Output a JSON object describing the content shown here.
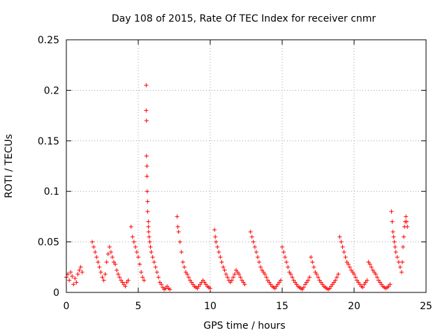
{
  "chart_data": {
    "type": "scatter",
    "title": "Day 108 of 2015, Rate Of TEC Index for receiver cnmr",
    "xlabel": "GPS time / hours",
    "ylabel": "ROTI / TECUs",
    "xlim": [
      0,
      25
    ],
    "ylim": [
      0,
      0.25
    ],
    "x_ticks": [
      0,
      5,
      10,
      15,
      20,
      25
    ],
    "x_tick_labels": [
      "0",
      "5",
      "10",
      "15",
      "20",
      "25"
    ],
    "y_ticks": [
      0,
      0.05,
      0.1,
      0.15,
      0.2,
      0.25
    ],
    "y_tick_labels": [
      "0",
      "0.05",
      "0.1",
      "0.15",
      "0.2",
      "0.25"
    ],
    "grid": true,
    "marker": "+",
    "series": [
      {
        "name": "ROTI",
        "color": "#ff0000",
        "x": [
          0.0,
          0.1,
          0.2,
          0.3,
          0.4,
          0.5,
          0.6,
          0.7,
          0.8,
          0.9,
          1.0,
          1.1,
          1.8,
          1.9,
          2.0,
          2.1,
          2.2,
          2.3,
          2.4,
          2.5,
          2.6,
          2.7,
          2.8,
          2.9,
          3.0,
          3.1,
          3.2,
          3.3,
          3.4,
          3.5,
          3.6,
          3.7,
          3.8,
          3.9,
          4.0,
          4.1,
          4.2,
          4.3,
          4.5,
          4.6,
          4.7,
          4.8,
          4.9,
          5.0,
          5.1,
          5.2,
          5.3,
          5.4,
          5.55,
          5.55,
          5.57,
          5.57,
          5.6,
          5.6,
          5.62,
          5.65,
          5.65,
          5.7,
          5.7,
          5.72,
          5.75,
          5.8,
          5.85,
          5.9,
          6.0,
          6.1,
          6.2,
          6.3,
          6.4,
          6.5,
          6.6,
          6.7,
          6.8,
          6.9,
          7.0,
          7.1,
          7.2,
          7.7,
          7.75,
          7.8,
          7.9,
          8.0,
          8.1,
          8.2,
          8.3,
          8.4,
          8.5,
          8.6,
          8.7,
          8.8,
          8.9,
          9.0,
          9.1,
          9.2,
          9.3,
          9.4,
          9.5,
          9.6,
          9.7,
          9.8,
          9.9,
          10.0,
          10.3,
          10.35,
          10.4,
          10.5,
          10.6,
          10.7,
          10.8,
          10.9,
          11.0,
          11.1,
          11.2,
          11.3,
          11.4,
          11.5,
          11.6,
          11.7,
          11.8,
          11.9,
          12.0,
          12.1,
          12.2,
          12.3,
          12.4,
          12.8,
          12.9,
          13.0,
          13.1,
          13.2,
          13.3,
          13.4,
          13.5,
          13.6,
          13.7,
          13.8,
          13.9,
          14.0,
          14.1,
          14.2,
          14.3,
          14.4,
          14.5,
          14.6,
          14.7,
          14.8,
          14.9,
          15.0,
          15.1,
          15.2,
          15.3,
          15.4,
          15.5,
          15.6,
          15.7,
          15.8,
          15.9,
          16.0,
          16.1,
          16.2,
          16.3,
          16.4,
          16.5,
          16.6,
          16.7,
          16.8,
          16.9,
          17.0,
          17.1,
          17.2,
          17.3,
          17.4,
          17.5,
          17.6,
          17.7,
          17.8,
          17.9,
          18.0,
          18.1,
          18.2,
          18.3,
          18.4,
          18.5,
          18.6,
          18.7,
          18.8,
          18.9,
          19.0,
          19.1,
          19.2,
          19.3,
          19.4,
          19.5,
          19.6,
          19.7,
          19.8,
          19.9,
          20.0,
          20.1,
          20.2,
          20.3,
          20.4,
          20.5,
          20.6,
          20.7,
          20.8,
          20.9,
          21.0,
          21.1,
          21.2,
          21.3,
          21.4,
          21.5,
          21.6,
          21.7,
          21.8,
          21.9,
          22.0,
          22.1,
          22.2,
          22.3,
          22.4,
          22.5,
          22.6,
          22.65,
          22.7,
          22.75,
          22.8,
          22.85,
          22.9,
          23.0,
          23.1,
          23.2,
          23.3,
          23.35,
          23.4,
          23.45,
          23.5,
          23.55,
          23.6,
          23.65,
          23.7
        ],
        "y": [
          0.015,
          0.018,
          0.012,
          0.02,
          0.016,
          0.008,
          0.014,
          0.01,
          0.018,
          0.022,
          0.025,
          0.02,
          0.05,
          0.045,
          0.04,
          0.035,
          0.03,
          0.025,
          0.02,
          0.015,
          0.012,
          0.018,
          0.03,
          0.038,
          0.045,
          0.04,
          0.035,
          0.03,
          0.028,
          0.022,
          0.018,
          0.015,
          0.012,
          0.01,
          0.008,
          0.006,
          0.01,
          0.012,
          0.065,
          0.055,
          0.05,
          0.045,
          0.04,
          0.035,
          0.028,
          0.02,
          0.015,
          0.012,
          0.205,
          0.18,
          0.17,
          0.135,
          0.125,
          0.115,
          0.1,
          0.09,
          0.08,
          0.07,
          0.065,
          0.06,
          0.055,
          0.05,
          0.045,
          0.04,
          0.035,
          0.03,
          0.025,
          0.02,
          0.015,
          0.01,
          0.008,
          0.005,
          0.003,
          0.004,
          0.006,
          0.004,
          0.003,
          0.075,
          0.065,
          0.06,
          0.05,
          0.04,
          0.03,
          0.025,
          0.02,
          0.018,
          0.015,
          0.012,
          0.01,
          0.008,
          0.006,
          0.005,
          0.004,
          0.006,
          0.008,
          0.01,
          0.012,
          0.01,
          0.008,
          0.006,
          0.005,
          0.004,
          0.062,
          0.055,
          0.05,
          0.045,
          0.04,
          0.035,
          0.03,
          0.025,
          0.022,
          0.018,
          0.015,
          0.012,
          0.01,
          0.012,
          0.015,
          0.018,
          0.022,
          0.02,
          0.018,
          0.015,
          0.012,
          0.01,
          0.008,
          0.06,
          0.055,
          0.05,
          0.045,
          0.04,
          0.035,
          0.03,
          0.025,
          0.022,
          0.02,
          0.018,
          0.015,
          0.012,
          0.01,
          0.008,
          0.006,
          0.005,
          0.004,
          0.006,
          0.008,
          0.01,
          0.012,
          0.045,
          0.04,
          0.035,
          0.03,
          0.025,
          0.02,
          0.018,
          0.015,
          0.012,
          0.01,
          0.008,
          0.006,
          0.005,
          0.004,
          0.003,
          0.005,
          0.008,
          0.01,
          0.012,
          0.015,
          0.035,
          0.03,
          0.025,
          0.02,
          0.018,
          0.015,
          0.012,
          0.01,
          0.008,
          0.006,
          0.005,
          0.004,
          0.003,
          0.004,
          0.006,
          0.008,
          0.01,
          0.012,
          0.015,
          0.018,
          0.055,
          0.05,
          0.045,
          0.04,
          0.035,
          0.03,
          0.028,
          0.025,
          0.022,
          0.02,
          0.018,
          0.015,
          0.012,
          0.01,
          0.008,
          0.006,
          0.005,
          0.008,
          0.01,
          0.012,
          0.03,
          0.028,
          0.025,
          0.022,
          0.02,
          0.018,
          0.015,
          0.012,
          0.01,
          0.008,
          0.006,
          0.005,
          0.004,
          0.005,
          0.006,
          0.008,
          0.08,
          0.07,
          0.06,
          0.055,
          0.05,
          0.045,
          0.04,
          0.035,
          0.03,
          0.025,
          0.02,
          0.03,
          0.045,
          0.055,
          0.065,
          0.07,
          0.075,
          0.07,
          0.065
        ]
      }
    ]
  }
}
